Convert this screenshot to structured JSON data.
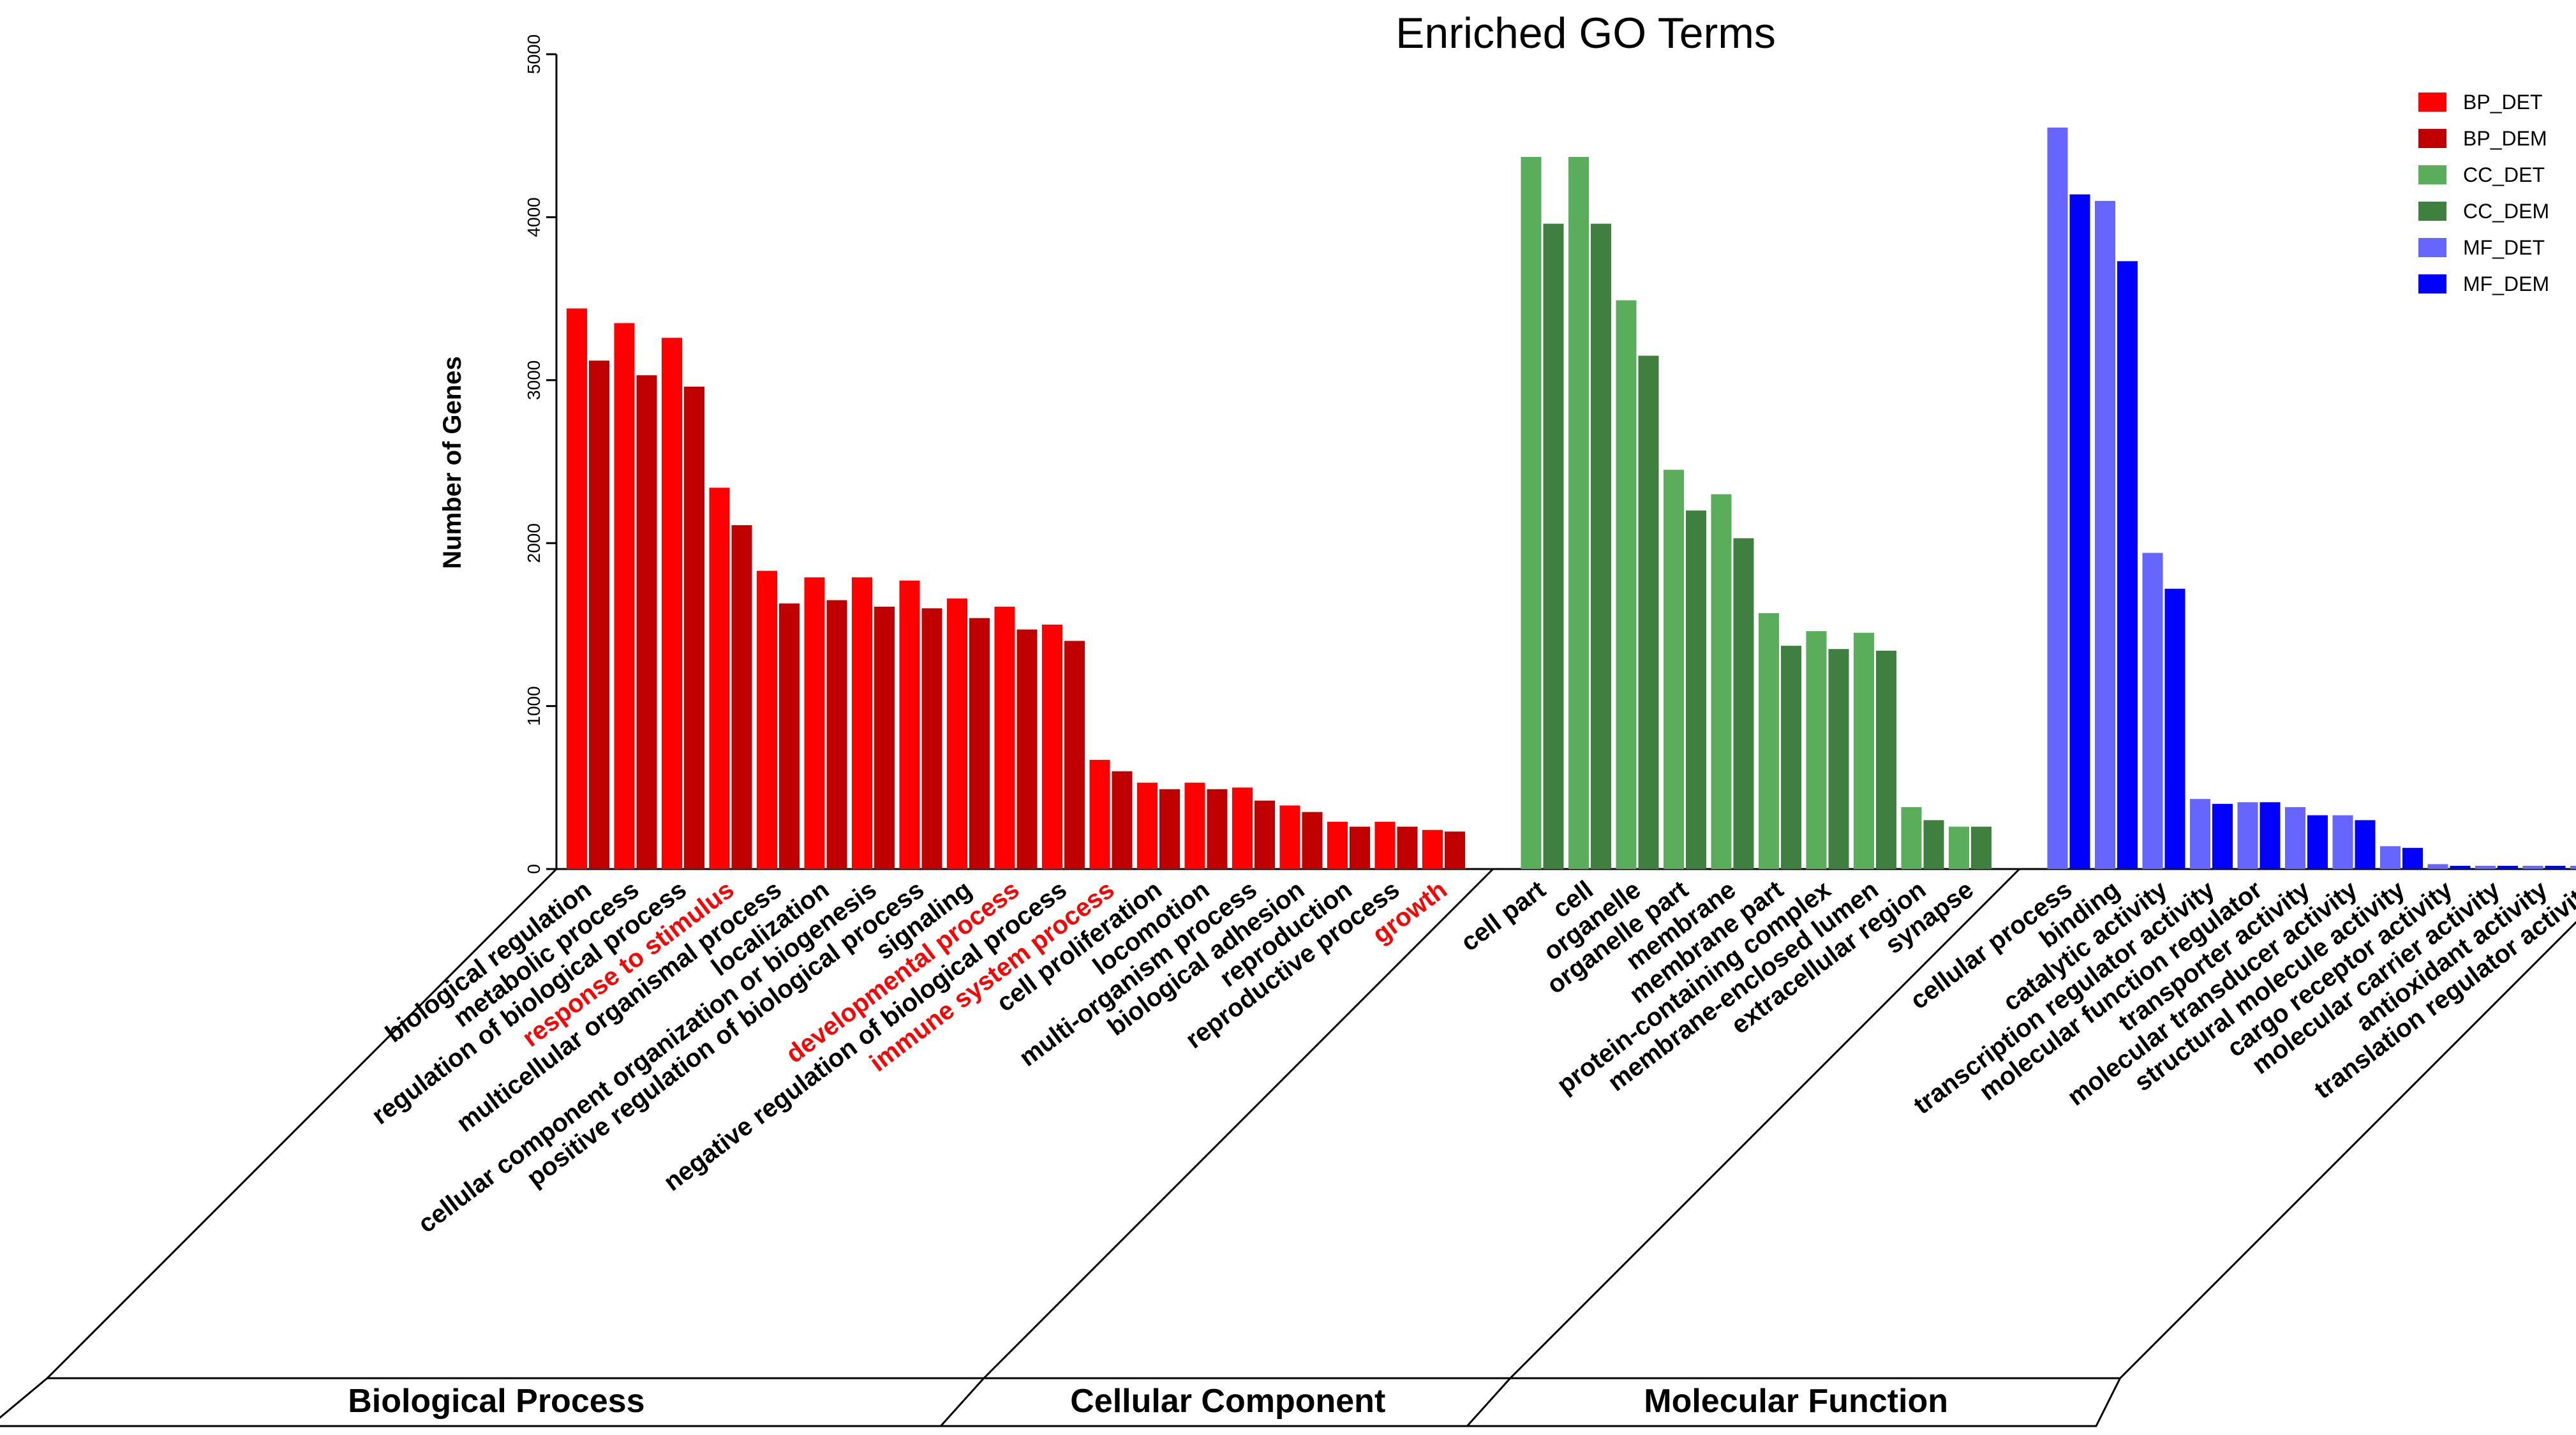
{
  "chart_data": {
    "type": "bar",
    "title": "Enriched GO Terms",
    "ylabel": "Number of Genes",
    "xlabel": "",
    "ylim": [
      0,
      5000
    ],
    "yticks": [
      0,
      1000,
      2000,
      3000,
      4000,
      5000
    ],
    "legend_position": "top-right",
    "series": [
      {
        "name": "BP_DET",
        "color": "#ff0000"
      },
      {
        "name": "BP_DEM",
        "color": "#c00000"
      },
      {
        "name": "CC_DET",
        "color": "#5aad5a"
      },
      {
        "name": "CC_DEM",
        "color": "#3f7f3f"
      },
      {
        "name": "MF_DET",
        "color": "#6666ff"
      },
      {
        "name": "MF_DEM",
        "color": "#0000ff"
      }
    ],
    "groups": [
      {
        "name": "Biological Process",
        "det_series": "BP_DET",
        "dem_series": "BP_DEM",
        "terms": [
          {
            "label": "biological regulation",
            "det": 3440,
            "dem": 3120,
            "highlight": false
          },
          {
            "label": "metabolic process",
            "det": 3350,
            "dem": 3030,
            "highlight": false
          },
          {
            "label": "regulation of biological process",
            "det": 3260,
            "dem": 2960,
            "highlight": false
          },
          {
            "label": "response to stimulus",
            "det": 2340,
            "dem": 2110,
            "highlight": true
          },
          {
            "label": "multicellular organismal process",
            "det": 1830,
            "dem": 1630,
            "highlight": false
          },
          {
            "label": "localization",
            "det": 1790,
            "dem": 1650,
            "highlight": false
          },
          {
            "label": "cellular component organization or biogenesis",
            "det": 1790,
            "dem": 1610,
            "highlight": false
          },
          {
            "label": "positive regulation of biological process",
            "det": 1770,
            "dem": 1600,
            "highlight": false
          },
          {
            "label": "signaling",
            "det": 1660,
            "dem": 1540,
            "highlight": false
          },
          {
            "label": "developmental process",
            "det": 1610,
            "dem": 1470,
            "highlight": true
          },
          {
            "label": "negative regulation of biological process",
            "det": 1500,
            "dem": 1400,
            "highlight": false
          },
          {
            "label": "immune system process",
            "det": 670,
            "dem": 600,
            "highlight": true
          },
          {
            "label": "cell proliferation",
            "det": 530,
            "dem": 490,
            "highlight": false
          },
          {
            "label": "locomotion",
            "det": 530,
            "dem": 490,
            "highlight": false
          },
          {
            "label": "multi-organism process",
            "det": 500,
            "dem": 420,
            "highlight": false
          },
          {
            "label": "biological adhesion",
            "det": 390,
            "dem": 350,
            "highlight": false
          },
          {
            "label": "reproduction",
            "det": 290,
            "dem": 260,
            "highlight": false
          },
          {
            "label": "reproductive process",
            "det": 290,
            "dem": 260,
            "highlight": false
          },
          {
            "label": "growth",
            "det": 240,
            "dem": 230,
            "highlight": true
          }
        ]
      },
      {
        "name": "Cellular Component",
        "det_series": "CC_DET",
        "dem_series": "CC_DEM",
        "terms": [
          {
            "label": "cell part",
            "det": 4370,
            "dem": 3960,
            "highlight": false
          },
          {
            "label": "cell",
            "det": 4370,
            "dem": 3960,
            "highlight": false
          },
          {
            "label": "organelle",
            "det": 3490,
            "dem": 3150,
            "highlight": false
          },
          {
            "label": "organelle part",
            "det": 2450,
            "dem": 2200,
            "highlight": false
          },
          {
            "label": "membrane",
            "det": 2300,
            "dem": 2030,
            "highlight": false
          },
          {
            "label": "membrane part",
            "det": 1570,
            "dem": 1370,
            "highlight": false
          },
          {
            "label": "protein-containing complex",
            "det": 1460,
            "dem": 1350,
            "highlight": false
          },
          {
            "label": "membrane-enclosed lumen",
            "det": 1450,
            "dem": 1340,
            "highlight": false
          },
          {
            "label": "extracellular region",
            "det": 380,
            "dem": 300,
            "highlight": false
          },
          {
            "label": "synapse",
            "det": 260,
            "dem": 260,
            "highlight": false
          }
        ]
      },
      {
        "name": "Molecular Function",
        "det_series": "MF_DET",
        "dem_series": "MF_DEM",
        "terms": [
          {
            "label": "cellular process",
            "det": 4550,
            "dem": 4140,
            "highlight": false
          },
          {
            "label": "binding",
            "det": 4100,
            "dem": 3730,
            "highlight": false
          },
          {
            "label": "catalytic activity",
            "det": 1940,
            "dem": 1720,
            "highlight": false
          },
          {
            "label": "transcription regulator activity",
            "det": 430,
            "dem": 400,
            "highlight": false
          },
          {
            "label": "molecular function regulator",
            "det": 410,
            "dem": 410,
            "highlight": false
          },
          {
            "label": "transporter activity",
            "det": 380,
            "dem": 330,
            "highlight": false
          },
          {
            "label": "molecular transducer activity",
            "det": 330,
            "dem": 300,
            "highlight": false
          },
          {
            "label": "structural molecule activity",
            "det": 140,
            "dem": 130,
            "highlight": false
          },
          {
            "label": "cargo receptor activity",
            "det": 30,
            "dem": 20,
            "highlight": false
          },
          {
            "label": "molecular carrier activity",
            "det": 20,
            "dem": 20,
            "highlight": false
          },
          {
            "label": "antioxidant activity",
            "det": 20,
            "dem": 20,
            "highlight": false
          },
          {
            "label": "translation regulator activity",
            "det": 20,
            "dem": 20,
            "highlight": false
          }
        ]
      }
    ]
  }
}
